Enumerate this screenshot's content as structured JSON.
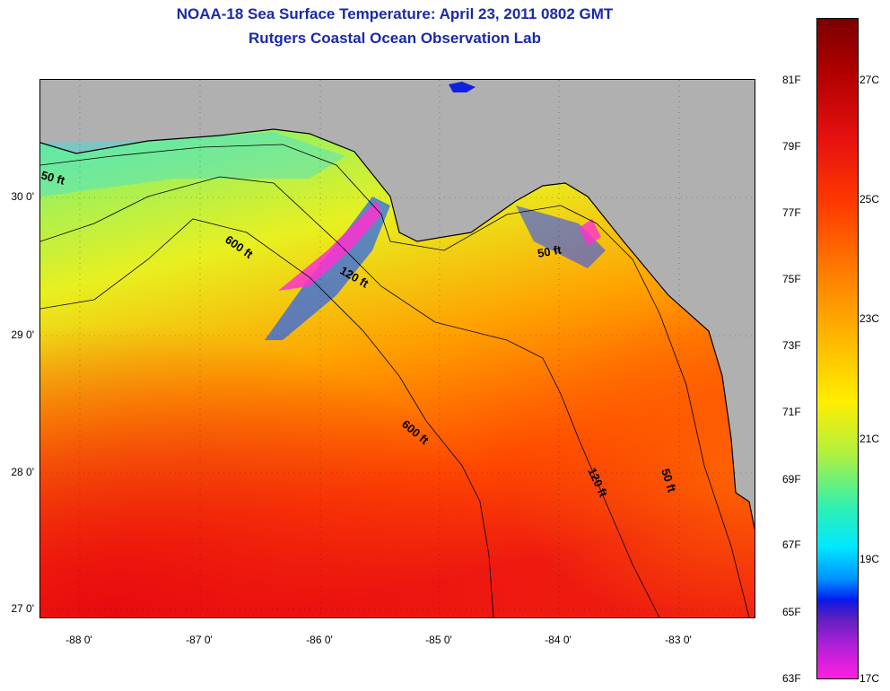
{
  "title_line1": "NOAA-18 Sea Surface Temperature:  April 23, 2011 0802 GMT",
  "title_line2": "Rutgers Coastal Ocean Observation Lab",
  "map": {
    "lat_labels": [
      "30 0'",
      "29 0'",
      "28 0'",
      "27 0'"
    ],
    "lon_labels": [
      "-88 0'",
      "-87 0'",
      "-86 0'",
      "-85 0'",
      "-84 0'",
      "-83 0'"
    ],
    "contour_labels": {
      "c50_west": "50 ft",
      "c600_north": "600 ft",
      "c120_north": "120 ft",
      "c50_east": "50 ft",
      "c600_south": "600 ft",
      "c120_south": "120 ft",
      "c50_southeast": "50 ft"
    },
    "land_color": "#b0b0b0"
  },
  "colorbar": {
    "fahrenheit_labels": [
      "81F",
      "79F",
      "77F",
      "75F",
      "73F",
      "71F",
      "69F",
      "67F",
      "65F",
      "63F"
    ],
    "celsius_labels": [
      "27C",
      "25C",
      "23C",
      "21C",
      "19C",
      "17C"
    ]
  }
}
